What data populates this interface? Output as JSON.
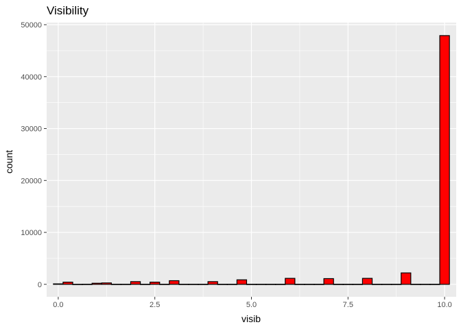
{
  "chart_data": {
    "type": "bar",
    "title": "Visibility",
    "xlabel": "visib",
    "ylabel": "count",
    "xlim": [
      -0.3,
      10.3
    ],
    "ylim": [
      -2400,
      50400
    ],
    "xticks": [
      0,
      2.5,
      5,
      7.5,
      10
    ],
    "xtick_labels": [
      "0.0",
      "2.5",
      "5.0",
      "7.5",
      "10.0"
    ],
    "yticks": [
      0,
      10000,
      20000,
      30000,
      40000,
      50000
    ],
    "ytick_labels": [
      "0",
      "10000",
      "20000",
      "30000",
      "40000",
      "50000"
    ],
    "grid": true,
    "bar_fill": "#ff0000",
    "bar_stroke": "#000000",
    "panel_background": "#ebebeb",
    "bins": [
      {
        "x0": -0.125,
        "x1": 0.125,
        "count": 90
      },
      {
        "x0": 0.125,
        "x1": 0.375,
        "count": 420
      },
      {
        "x0": 0.375,
        "x1": 0.625,
        "count": 10
      },
      {
        "x0": 0.625,
        "x1": 0.875,
        "count": 20
      },
      {
        "x0": 0.875,
        "x1": 1.125,
        "count": 210
      },
      {
        "x0": 1.125,
        "x1": 1.375,
        "count": 270
      },
      {
        "x0": 1.375,
        "x1": 1.625,
        "count": 20
      },
      {
        "x0": 1.625,
        "x1": 1.875,
        "count": 20
      },
      {
        "x0": 1.875,
        "x1": 2.125,
        "count": 520
      },
      {
        "x0": 2.125,
        "x1": 2.375,
        "count": 20
      },
      {
        "x0": 2.375,
        "x1": 2.625,
        "count": 420
      },
      {
        "x0": 2.625,
        "x1": 2.875,
        "count": 20
      },
      {
        "x0": 2.875,
        "x1": 3.125,
        "count": 700
      },
      {
        "x0": 3.125,
        "x1": 3.375,
        "count": 20
      },
      {
        "x0": 3.375,
        "x1": 3.625,
        "count": 20
      },
      {
        "x0": 3.625,
        "x1": 3.875,
        "count": 20
      },
      {
        "x0": 3.875,
        "x1": 4.125,
        "count": 520
      },
      {
        "x0": 4.125,
        "x1": 4.375,
        "count": 20
      },
      {
        "x0": 4.375,
        "x1": 4.625,
        "count": 20
      },
      {
        "x0": 4.625,
        "x1": 4.875,
        "count": 870
      },
      {
        "x0": 4.875,
        "x1": 5.125,
        "count": 20
      },
      {
        "x0": 5.125,
        "x1": 5.375,
        "count": 20
      },
      {
        "x0": 5.375,
        "x1": 5.625,
        "count": 20
      },
      {
        "x0": 5.625,
        "x1": 5.875,
        "count": 20
      },
      {
        "x0": 5.875,
        "x1": 6.125,
        "count": 1150
      },
      {
        "x0": 6.125,
        "x1": 6.375,
        "count": 20
      },
      {
        "x0": 6.375,
        "x1": 6.625,
        "count": 20
      },
      {
        "x0": 6.625,
        "x1": 6.875,
        "count": 20
      },
      {
        "x0": 6.875,
        "x1": 7.125,
        "count": 1100
      },
      {
        "x0": 7.125,
        "x1": 7.375,
        "count": 20
      },
      {
        "x0": 7.375,
        "x1": 7.625,
        "count": 20
      },
      {
        "x0": 7.625,
        "x1": 7.875,
        "count": 20
      },
      {
        "x0": 7.875,
        "x1": 8.125,
        "count": 1150
      },
      {
        "x0": 8.125,
        "x1": 8.375,
        "count": 20
      },
      {
        "x0": 8.375,
        "x1": 8.625,
        "count": 20
      },
      {
        "x0": 8.625,
        "x1": 8.875,
        "count": 20
      },
      {
        "x0": 8.875,
        "x1": 9.125,
        "count": 2200
      },
      {
        "x0": 9.125,
        "x1": 9.375,
        "count": 20
      },
      {
        "x0": 9.375,
        "x1": 9.625,
        "count": 20
      },
      {
        "x0": 9.625,
        "x1": 9.875,
        "count": 20
      },
      {
        "x0": 9.875,
        "x1": 10.125,
        "count": 47900
      }
    ]
  }
}
